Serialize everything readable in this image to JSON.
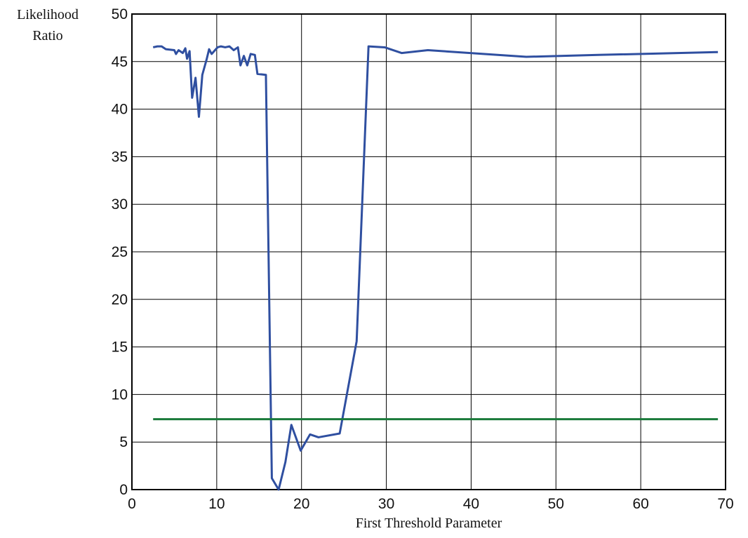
{
  "chart_data": {
    "type": "line",
    "xlabel": "First Threshold Parameter",
    "ylabel": "Likelihood Ratio",
    "xlim": [
      0,
      70
    ],
    "ylim": [
      0,
      50
    ],
    "xticks": [
      0,
      10,
      20,
      30,
      40,
      50,
      60,
      70
    ],
    "yticks": [
      0,
      5,
      10,
      15,
      20,
      25,
      30,
      35,
      40,
      45,
      50
    ],
    "grid": true,
    "series": [
      {
        "color": "#2f4fa0",
        "x": [
          2.5,
          3,
          3.5,
          4,
          5,
          5.2,
          5.5,
          6,
          6.3,
          6.5,
          6.8,
          7.1,
          7.5,
          7.9,
          8.3,
          8.8,
          9.1,
          9.4,
          9.8,
          10.1,
          10.5,
          11,
          11.5,
          12,
          12.5,
          12.8,
          13.2,
          13.6,
          14,
          14.5,
          14.8,
          15.8,
          16.5,
          17.3,
          18.1,
          18.8,
          19.9,
          21,
          22,
          24.5,
          26.5,
          27.9,
          29.8,
          31.8,
          34.9,
          46.5,
          55,
          69.1
        ],
        "values": [
          46.5,
          46.6,
          46.6,
          46.3,
          46.2,
          45.8,
          46.2,
          45.9,
          46.4,
          45.3,
          46.1,
          41.2,
          43.3,
          39.2,
          43.6,
          45.2,
          46.3,
          45.8,
          46.2,
          46.5,
          46.6,
          46.5,
          46.6,
          46.2,
          46.5,
          44.6,
          45.6,
          44.6,
          45.8,
          45.7,
          43.7,
          43.6,
          1.2,
          0,
          2.9,
          6.8,
          4.1,
          5.8,
          5.5,
          5.9,
          15.6,
          46.6,
          46.5,
          45.9,
          46.2,
          45.5,
          45.7,
          46.0
        ]
      },
      {
        "color": "#1a7a3a",
        "x": [
          2.5,
          69.1
        ],
        "values": [
          7.4,
          7.4
        ]
      }
    ]
  }
}
